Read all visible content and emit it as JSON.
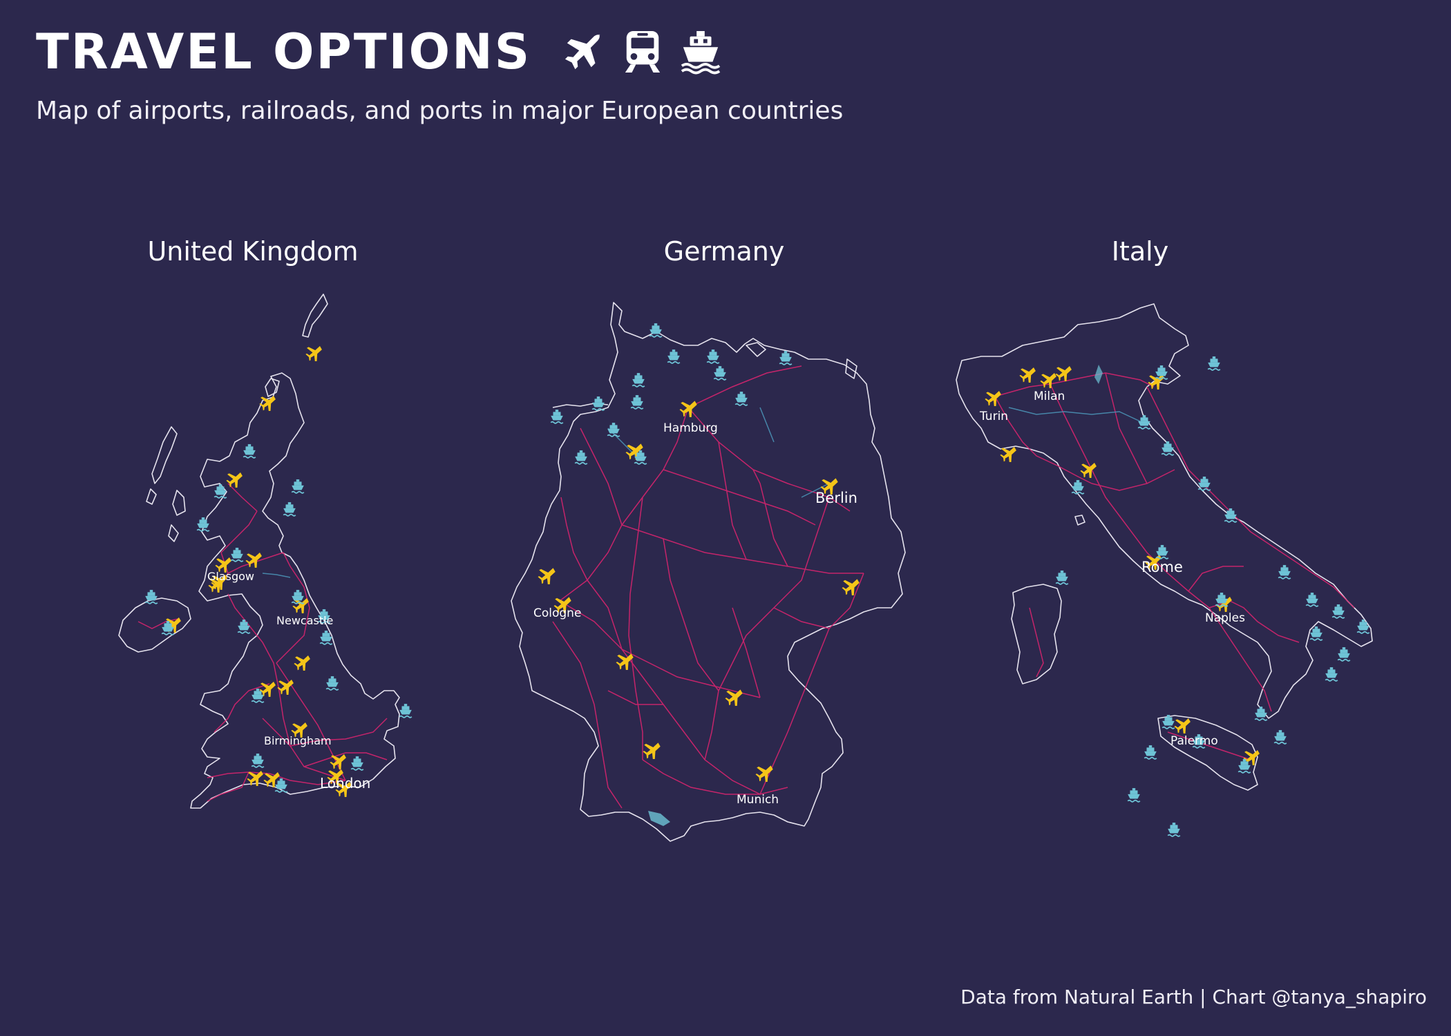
{
  "header": {
    "title": "TRAVEL OPTIONS",
    "subtitle": "Map of airports, railroads, and ports in major European countries",
    "icons": [
      "airplane-icon",
      "train-icon",
      "ship-icon"
    ]
  },
  "caption": "Data from Natural Earth | Chart @tanya_shapiro",
  "colors": {
    "background": "#2c284d",
    "airport": "#f5c518",
    "port": "#6ec3d6",
    "railroad": "#d6246e",
    "border": "#e6e3ee",
    "water": "#4a90b4"
  },
  "panels": [
    {
      "name": "United Kingdom",
      "cities": [
        "Glasgow",
        "Newcastle",
        "Birmingham",
        "London"
      ]
    },
    {
      "name": "Germany",
      "cities": [
        "Hamburg",
        "Berlin",
        "Cologne",
        "Munich"
      ]
    },
    {
      "name": "Italy",
      "cities": [
        "Milan",
        "Turin",
        "Rome",
        "Naples",
        "Palermo"
      ]
    }
  ]
}
